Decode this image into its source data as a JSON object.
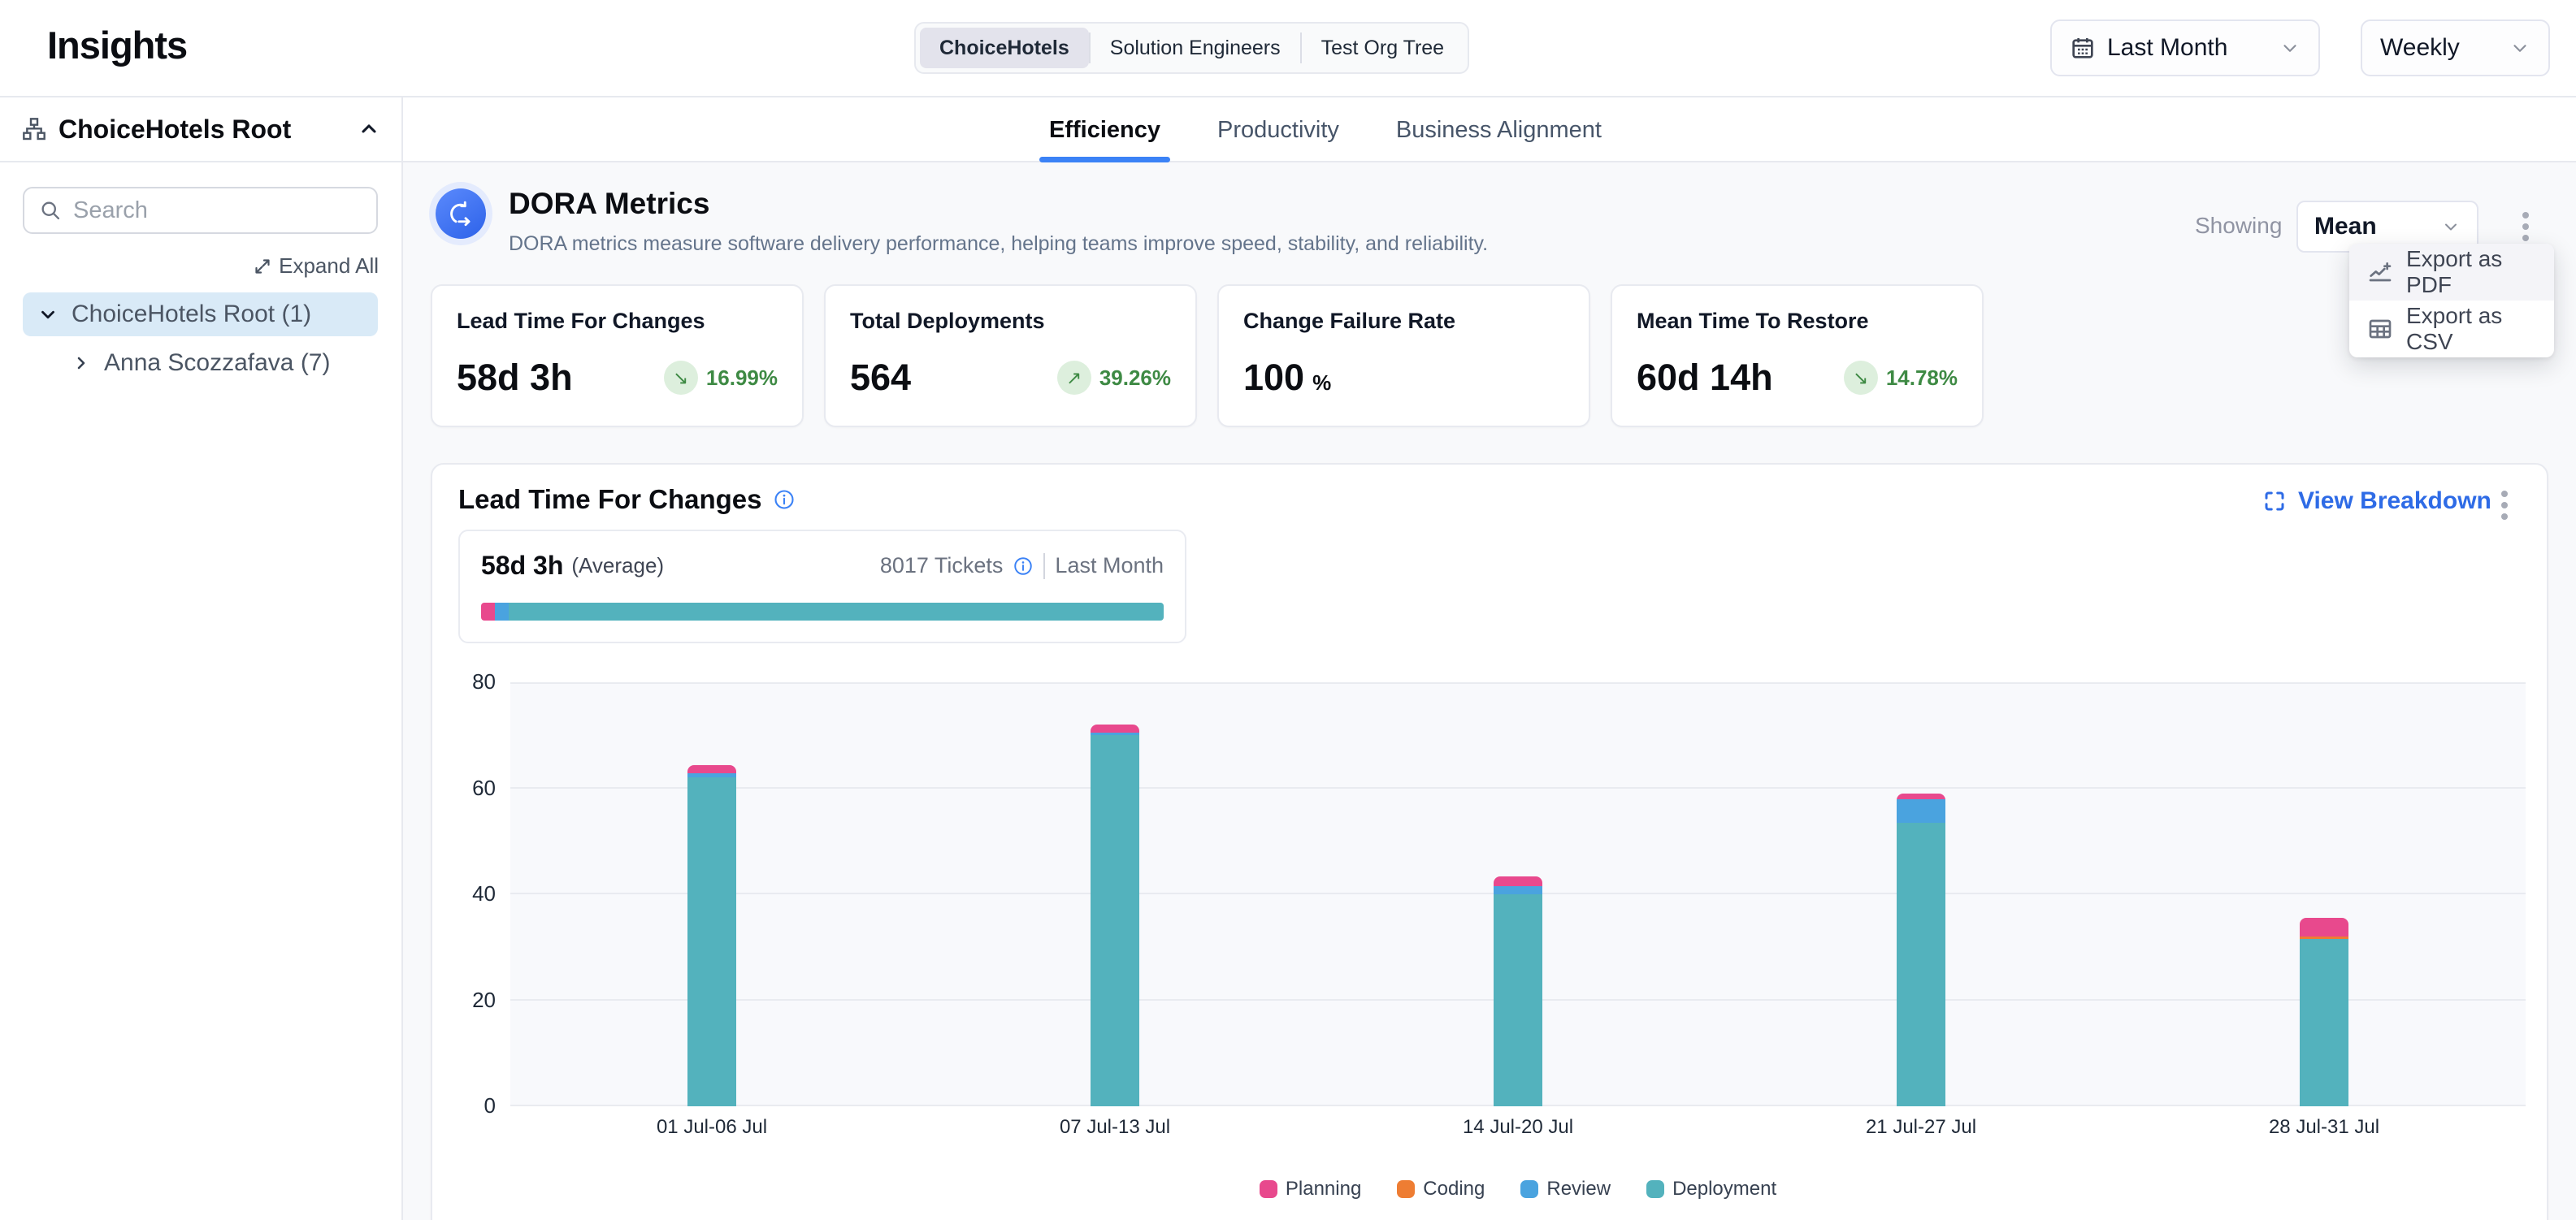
{
  "header": {
    "title": "Insights",
    "org_tabs": [
      {
        "label": "ChoiceHotels",
        "active": true
      },
      {
        "label": "Solution Engineers",
        "active": false
      },
      {
        "label": "Test Org Tree",
        "active": false
      }
    ],
    "date_range": "Last Month",
    "granularity": "Weekly"
  },
  "sidebar": {
    "title": "ChoiceHotels Root",
    "search_placeholder": "Search",
    "expand_all_label": "Expand All",
    "tree": [
      {
        "label": "ChoiceHotels Root (1)",
        "selected": true,
        "expanded": true
      },
      {
        "label": "Anna Scozzafava (7)",
        "selected": false,
        "expanded": false
      }
    ]
  },
  "main_tabs": [
    {
      "label": "Efficiency",
      "active": true
    },
    {
      "label": "Productivity",
      "active": false
    },
    {
      "label": "Business Alignment",
      "active": false
    }
  ],
  "dora": {
    "title": "DORA Metrics",
    "description": "DORA metrics measure software delivery performance, helping teams improve speed, stability, and reliability.",
    "showing_label": "Showing",
    "showing_value": "Mean",
    "export_menu": [
      {
        "label": "Export as PDF",
        "icon": "chart-line-plus"
      },
      {
        "label": "Export as CSV",
        "icon": "table"
      }
    ]
  },
  "metric_cards": [
    {
      "title": "Lead Time For Changes",
      "value": "58d 3h",
      "trend": {
        "arrow": "↘",
        "text": "16.99%",
        "direction": "down"
      }
    },
    {
      "title": "Total Deployments",
      "value": "564",
      "trend": {
        "arrow": "↗",
        "text": "39.26%",
        "direction": "up"
      }
    },
    {
      "title": "Change Failure Rate",
      "value": "100",
      "unit": "%"
    },
    {
      "title": "Mean Time To Restore",
      "value": "60d 14h",
      "trend": {
        "arrow": "↘",
        "text": "14.78%",
        "direction": "down"
      }
    }
  ],
  "breakdown": {
    "title": "Lead Time For Changes",
    "view_breakdown_label": "View Breakdown",
    "average_value": "58d 3h",
    "average_suffix": "(Average)",
    "tickets_label": "8017 Tickets",
    "period_label": "Last Month",
    "progress_segments": [
      {
        "name": "Planning",
        "color": "#e8498d",
        "pct": 2
      },
      {
        "name": "Review",
        "color": "#4aa3df",
        "pct": 2
      },
      {
        "name": "Deployment",
        "color": "#53b2bd",
        "pct": 96
      }
    ]
  },
  "chart_data": {
    "type": "bar",
    "stacked": true,
    "title": "Lead Time For Changes breakdown by phase",
    "categories": [
      "01 Jul-06 Jul",
      "07 Jul-13 Jul",
      "14 Jul-20 Jul",
      "21 Jul-27 Jul",
      "28 Jul-31 Jul"
    ],
    "series": [
      {
        "name": "Planning",
        "color": "#e8498d",
        "values": [
          1.5,
          1.5,
          1.8,
          1.0,
          3.5
        ]
      },
      {
        "name": "Coding",
        "color": "#ee7d33",
        "values": [
          0,
          0,
          0,
          0,
          0.5
        ]
      },
      {
        "name": "Review",
        "color": "#4aa3df",
        "values": [
          0.8,
          0.5,
          1.5,
          4.5,
          0
        ]
      },
      {
        "name": "Deployment",
        "color": "#53b2bd",
        "values": [
          62,
          70,
          40,
          53.5,
          31.5
        ]
      }
    ],
    "ylim": [
      0,
      80
    ],
    "yticks": [
      0,
      20,
      40,
      60,
      80
    ],
    "xlabel": "",
    "ylabel": "",
    "grid": "horizontal",
    "legend_position": "bottom"
  },
  "colors": {
    "accent_blue": "#2e6be6",
    "tab_underline_blue": "#3b82f6",
    "positive_green": "#3e8a44",
    "positive_green_bg": "#ddefdd",
    "selected_row_bg": "#d9eaf7",
    "planning_pink": "#e8498d",
    "coding_orange": "#ee7d33",
    "review_blue": "#4aa3df",
    "deployment_teal": "#53b2bd"
  }
}
